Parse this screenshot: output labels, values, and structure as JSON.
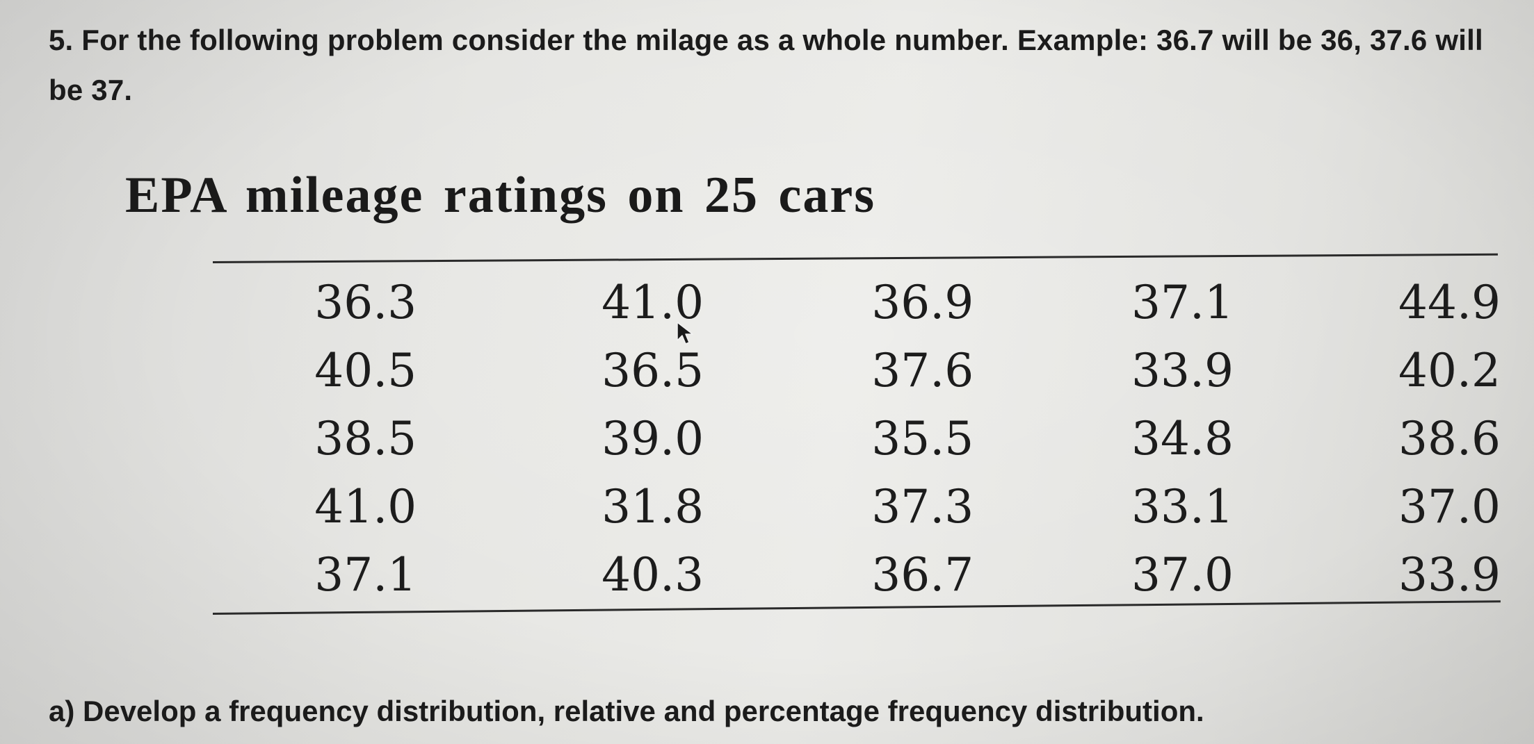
{
  "problem": {
    "text": "5. For the following problem consider the milage as a whole number. Example: 36.7 will be 36, 37.6 will be 37."
  },
  "table": {
    "title": "EPA mileage ratings on 25 cars",
    "rows": [
      [
        "36.3",
        "41.0",
        "36.9",
        "37.1",
        "44.9"
      ],
      [
        "40.5",
        "36.5",
        "37.6",
        "33.9",
        "40.2"
      ],
      [
        "38.5",
        "39.0",
        "35.5",
        "34.8",
        "38.6"
      ],
      [
        "41.0",
        "31.8",
        "37.3",
        "33.1",
        "37.0"
      ],
      [
        "37.1",
        "40.3",
        "36.7",
        "37.0",
        "33.9"
      ]
    ]
  },
  "questions": {
    "a": "a) Develop a frequency distribution, relative and percentage frequency distribution."
  },
  "icons": {
    "cursor": "mouse-pointer-icon"
  }
}
